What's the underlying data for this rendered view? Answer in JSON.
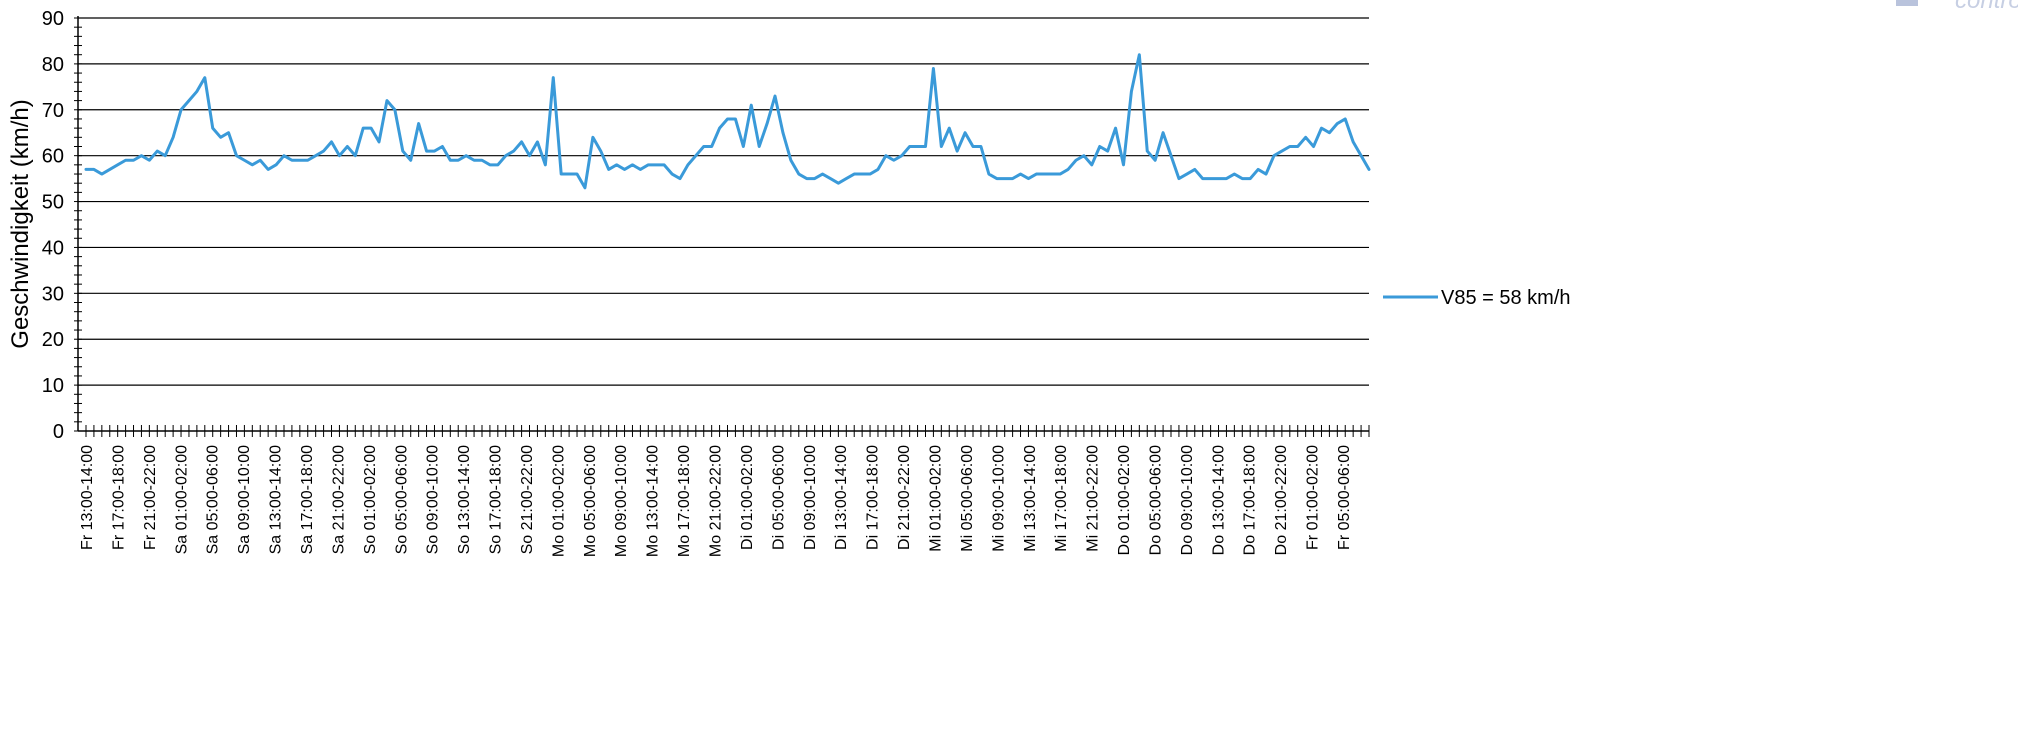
{
  "chart_data": {
    "type": "line",
    "title": "",
    "xlabel": "",
    "ylabel": "Geschwindigkeit (km/h)",
    "ylim": [
      0,
      90
    ],
    "yticks": [
      0,
      10,
      20,
      30,
      40,
      50,
      60,
      70,
      80,
      90
    ],
    "grid": true,
    "legend_position": "right",
    "x_tick_labels": [
      "Fr 13:00-14:00",
      "Fr 17:00-18:00",
      "Fr 21:00-22:00",
      "Sa 01:00-02:00",
      "Sa 05:00-06:00",
      "Sa 09:00-10:00",
      "Sa 13:00-14:00",
      "Sa 17:00-18:00",
      "Sa 21:00-22:00",
      "So 01:00-02:00",
      "So 05:00-06:00",
      "So 09:00-10:00",
      "So 13:00-14:00",
      "So 17:00-18:00",
      "So 21:00-22:00",
      "Mo 01:00-02:00",
      "Mo 05:00-06:00",
      "Mo 09:00-10:00",
      "Mo 13:00-14:00",
      "Mo 17:00-18:00",
      "Mo 21:00-22:00",
      "Di 01:00-02:00",
      "Di 05:00-06:00",
      "Di 09:00-10:00",
      "Di 13:00-14:00",
      "Di 17:00-18:00",
      "Di 21:00-22:00",
      "Mi 01:00-02:00",
      "Mi 05:00-06:00",
      "Mi 09:00-10:00",
      "Mi 13:00-14:00",
      "Mi 17:00-18:00",
      "Mi 21:00-22:00",
      "Do 01:00-02:00",
      "Do 05:00-06:00",
      "Do 09:00-10:00",
      "Do 13:00-14:00",
      "Do 17:00-18:00",
      "Do 21:00-22:00",
      "Fr 01:00-02:00",
      "Fr 05:00-06:00"
    ],
    "series": [
      {
        "name": "V85 = 58 km/h",
        "color": "#3a9ad9",
        "values": [
          57,
          57,
          56,
          57,
          58,
          59,
          59,
          60,
          59,
          61,
          60,
          64,
          70,
          72,
          74,
          77,
          66,
          64,
          65,
          60,
          59,
          58,
          59,
          57,
          58,
          60,
          59,
          59,
          59,
          60,
          61,
          63,
          60,
          62,
          60,
          66,
          66,
          63,
          72,
          70,
          61,
          59,
          67,
          61,
          61,
          62,
          59,
          59,
          60,
          59,
          59,
          58,
          58,
          60,
          61,
          63,
          60,
          63,
          58,
          77,
          56,
          56,
          56,
          53,
          64,
          61,
          57,
          58,
          57,
          58,
          57,
          58,
          58,
          58,
          56,
          55,
          58,
          60,
          62,
          62,
          66,
          68,
          68,
          62,
          71,
          62,
          67,
          73,
          65,
          59,
          56,
          55,
          55,
          56,
          55,
          54,
          55,
          56,
          56,
          56,
          57,
          60,
          59,
          60,
          62,
          62,
          62,
          79,
          62,
          66,
          61,
          65,
          62,
          62,
          56,
          55,
          55,
          55,
          56,
          55,
          56,
          56,
          56,
          56,
          57,
          59,
          60,
          58,
          62,
          61,
          66,
          58,
          74,
          82,
          61,
          59,
          65,
          60,
          55,
          56,
          57,
          55,
          55,
          55,
          55,
          56,
          55,
          55,
          57,
          56,
          60,
          61,
          62,
          62,
          64,
          62,
          66,
          65,
          67,
          68,
          63,
          60,
          57
        ]
      }
    ]
  },
  "decor": {
    "corner_text": "controlli"
  }
}
